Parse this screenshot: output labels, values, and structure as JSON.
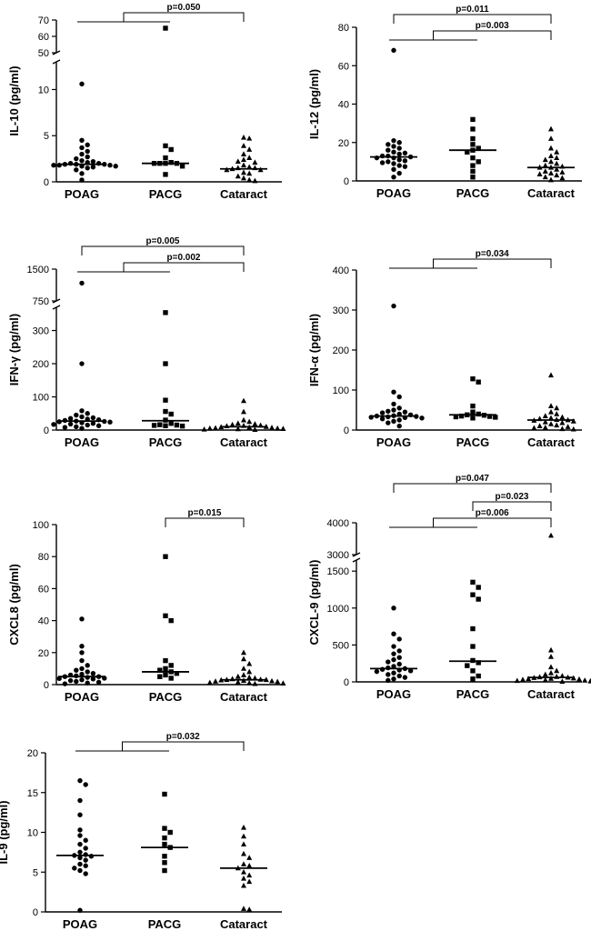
{
  "chart_data": [
    {
      "type": "scatter",
      "ylabel": "IL-10 (pg/ml)",
      "categories": [
        "POAG",
        "PACG",
        "Cataract"
      ],
      "ylim": [
        0,
        70
      ],
      "y_breaks": [
        {
          "lower": [
            0,
            13
          ],
          "upper": [
            50,
            70
          ]
        }
      ],
      "yticks": [
        0,
        5,
        10,
        50,
        60,
        70
      ],
      "grid": false,
      "series": [
        {
          "marker": "circle",
          "median": 1.9,
          "values": [
            10.6,
            4.5,
            4.0,
            3.7,
            3.3,
            3.0,
            2.7,
            2.5,
            2.3,
            2.2,
            2.1,
            2.0,
            2.0,
            1.9,
            1.9,
            1.9,
            1.8,
            1.8,
            1.8,
            1.7,
            1.7,
            1.6,
            1.5,
            1.3,
            0.9,
            0.2
          ]
        },
        {
          "marker": "square",
          "median": 2.0,
          "values": [
            65,
            3.9,
            3.5,
            2.6,
            2.1,
            2.0,
            2.0,
            2.0,
            2.0,
            1.7,
            0.8
          ]
        },
        {
          "marker": "triangle",
          "median": 1.4,
          "values": [
            4.8,
            4.7,
            3.9,
            3.5,
            3.0,
            2.6,
            2.4,
            2.2,
            2.1,
            1.8,
            1.6,
            1.5,
            1.5,
            1.4,
            1.3,
            1.3,
            1.0,
            0.9,
            0.6,
            0.4,
            0.2,
            0.1
          ]
        }
      ],
      "comparisons": [
        {
          "label": "p=0.050",
          "left": [
            "POAG",
            "PACG"
          ],
          "right": "Cataract"
        }
      ]
    },
    {
      "type": "scatter",
      "ylabel": "IL-12 (pg/ml)",
      "categories": [
        "POAG",
        "PACG",
        "Cataract"
      ],
      "ylim": [
        0,
        80
      ],
      "yticks": [
        0,
        20,
        40,
        60,
        80
      ],
      "grid": false,
      "series": [
        {
          "marker": "circle",
          "median": 12.5,
          "values": [
            68,
            21,
            20,
            19,
            18,
            17,
            16,
            15,
            14.5,
            14,
            13,
            13,
            12.5,
            12,
            12,
            11,
            10.5,
            10,
            9.5,
            9,
            8,
            7.5,
            6,
            4,
            2
          ]
        },
        {
          "marker": "square",
          "median": 16,
          "values": [
            32,
            27,
            22,
            19,
            17,
            16,
            15,
            12,
            10,
            8,
            5,
            2
          ]
        },
        {
          "marker": "triangle",
          "median": 7,
          "values": [
            27,
            22,
            17,
            15,
            13,
            12,
            11,
            10,
            9,
            8,
            7.5,
            7,
            7,
            6,
            5,
            4.5,
            4,
            3.5,
            3,
            2,
            1.5,
            0.5
          ]
        }
      ],
      "comparisons": [
        {
          "label": "p=0.011",
          "left": [
            "POAG"
          ],
          "right": "Cataract"
        },
        {
          "label": "p=0.003",
          "left": [
            "POAG",
            "PACG"
          ],
          "right": "Cataract"
        }
      ]
    },
    {
      "type": "scatter",
      "ylabel": "IFN-γ (pg/ml)",
      "categories": [
        "POAG",
        "PACG",
        "Cataract"
      ],
      "ylim": [
        0,
        1500
      ],
      "y_breaks": [
        {
          "lower": [
            0,
            370
          ],
          "upper": [
            750,
            1500
          ]
        }
      ],
      "yticks": [
        0,
        100,
        200,
        300,
        750,
        1500
      ],
      "grid": false,
      "series": [
        {
          "marker": "circle",
          "median": 27,
          "values": [
            1170,
            200,
            58,
            50,
            45,
            40,
            37,
            35,
            33,
            31,
            29,
            27,
            26,
            25,
            24,
            22,
            20,
            18,
            17,
            15,
            13,
            10,
            8,
            5
          ]
        },
        {
          "marker": "square",
          "median": 28,
          "values": [
            354,
            200,
            90,
            56,
            48,
            30,
            20,
            16,
            15,
            14,
            13,
            12
          ]
        },
        {
          "marker": "triangle",
          "median": 10,
          "values": [
            88,
            55,
            30,
            25,
            20,
            18,
            16,
            14,
            13,
            12,
            10,
            9,
            8,
            7,
            6,
            5,
            5,
            4,
            3,
            2,
            1
          ]
        }
      ],
      "comparisons": [
        {
          "label": "p=0.005",
          "left": [
            "POAG"
          ],
          "right": "Cataract"
        },
        {
          "label": "p=0.002",
          "left": [
            "POAG",
            "PACG"
          ],
          "right": "Cataract"
        }
      ]
    },
    {
      "type": "scatter",
      "ylabel": "IFN-α (pg/ml)",
      "categories": [
        "POAG",
        "PACG",
        "Cataract"
      ],
      "ylim": [
        0,
        400
      ],
      "yticks": [
        0,
        100,
        200,
        300,
        400
      ],
      "grid": false,
      "series": [
        {
          "marker": "circle",
          "median": 35,
          "values": [
            310,
            95,
            83,
            65,
            55,
            50,
            47,
            45,
            43,
            40,
            38,
            36,
            35,
            34,
            33,
            32,
            31,
            30,
            28,
            25,
            22,
            18,
            10
          ]
        },
        {
          "marker": "square",
          "median": 38,
          "values": [
            128,
            120,
            60,
            45,
            40,
            38,
            37,
            35,
            34,
            33,
            32,
            30
          ]
        },
        {
          "marker": "triangle",
          "median": 25,
          "values": [
            137,
            60,
            55,
            45,
            40,
            35,
            32,
            30,
            28,
            26,
            25,
            24,
            22,
            20,
            18,
            15,
            12,
            10,
            8,
            6,
            5,
            3,
            2
          ]
        }
      ],
      "comparisons": [
        {
          "label": "p=0.034",
          "left": [
            "POAG",
            "PACG"
          ],
          "right": "Cataract"
        }
      ]
    },
    {
      "type": "scatter",
      "ylabel": "CXCL8 (pg/ml)",
      "categories": [
        "POAG",
        "PACG",
        "Cataract"
      ],
      "ylim": [
        0,
        100
      ],
      "yticks": [
        0,
        20,
        40,
        60,
        80,
        100
      ],
      "grid": false,
      "series": [
        {
          "marker": "circle",
          "median": 5,
          "values": [
            41,
            24,
            20,
            15,
            12,
            10,
            9,
            8,
            7,
            6.5,
            6,
            5.5,
            5,
            5,
            4.5,
            4,
            3.8,
            3.5,
            3,
            2.5,
            2,
            1.5,
            1,
            0.5
          ]
        },
        {
          "marker": "square",
          "median": 8,
          "values": [
            80,
            43,
            40,
            15,
            12,
            10,
            9,
            8,
            7,
            6,
            5,
            4
          ]
        },
        {
          "marker": "triangle",
          "median": 3,
          "values": [
            20,
            16,
            13,
            10,
            8,
            6,
            5,
            4.5,
            4,
            3.5,
            3.2,
            3,
            3,
            2.8,
            2.5,
            2.2,
            2,
            1.8,
            1.5,
            1.2,
            1,
            0.8,
            0.5
          ]
        }
      ],
      "comparisons": [
        {
          "label": "p=0.015",
          "left": [
            "PACG"
          ],
          "right": "Cataract"
        }
      ]
    },
    {
      "type": "scatter",
      "ylabel": "CXCL-9 (pg/ml)",
      "categories": [
        "POAG",
        "PACG",
        "Cataract"
      ],
      "ylim": [
        0,
        4000
      ],
      "y_breaks": [
        {
          "lower": [
            0,
            1650
          ],
          "upper": [
            3000,
            4000
          ]
        }
      ],
      "yticks": [
        0,
        500,
        1000,
        1500,
        3000,
        4000
      ],
      "grid": false,
      "series": [
        {
          "marker": "circle",
          "median": 180,
          "values": [
            1000,
            650,
            580,
            480,
            420,
            380,
            330,
            300,
            270,
            240,
            210,
            190,
            180,
            170,
            160,
            150,
            140,
            120,
            100,
            80,
            60,
            40,
            20
          ]
        },
        {
          "marker": "square",
          "median": 280,
          "values": [
            1350,
            1280,
            1180,
            1120,
            720,
            480,
            290,
            260,
            220,
            150,
            80,
            40
          ]
        },
        {
          "marker": "triangle",
          "median": 60,
          "values": [
            3600,
            430,
            340,
            200,
            150,
            120,
            100,
            80,
            70,
            65,
            60,
            55,
            50,
            45,
            40,
            35,
            30,
            25,
            20,
            15,
            10,
            5
          ]
        }
      ],
      "comparisons": [
        {
          "label": "p=0.047",
          "left": [
            "POAG"
          ],
          "right": "Cataract"
        },
        {
          "label": "p=0.023",
          "left": [
            "PACG"
          ],
          "right": "Cataract"
        },
        {
          "label": "p=0.006",
          "left": [
            "POAG",
            "PACG"
          ],
          "right": "Cataract"
        }
      ]
    },
    {
      "type": "scatter",
      "ylabel": "IL-9 (pg/ml)",
      "categories": [
        "POAG",
        "PACG",
        "Cataract"
      ],
      "ylim": [
        0,
        20
      ],
      "yticks": [
        0,
        5,
        10,
        15,
        20
      ],
      "grid": false,
      "series": [
        {
          "marker": "circle",
          "median": 7.1,
          "values": [
            16.5,
            16.0,
            14.0,
            12.2,
            10.3,
            9.6,
            9.0,
            8.5,
            8.0,
            7.5,
            7.2,
            7.1,
            7.0,
            6.8,
            6.5,
            6.0,
            5.8,
            5.5,
            5.2,
            4.8,
            0.2
          ]
        },
        {
          "marker": "square",
          "median": 8.1,
          "values": [
            14.8,
            10.5,
            10.0,
            9.3,
            8.5,
            8.1,
            7.0,
            6.2,
            5.2
          ]
        },
        {
          "marker": "triangle",
          "median": 5.5,
          "values": [
            10.6,
            9.5,
            8.5,
            7.3,
            6.8,
            6.0,
            5.8,
            5.5,
            5.0,
            4.6,
            4.2,
            3.8,
            3.3,
            0.4,
            0.3
          ]
        }
      ],
      "comparisons": [
        {
          "label": "p=0.032",
          "left": [
            "POAG",
            "PACG"
          ],
          "right": "Cataract"
        }
      ]
    }
  ]
}
